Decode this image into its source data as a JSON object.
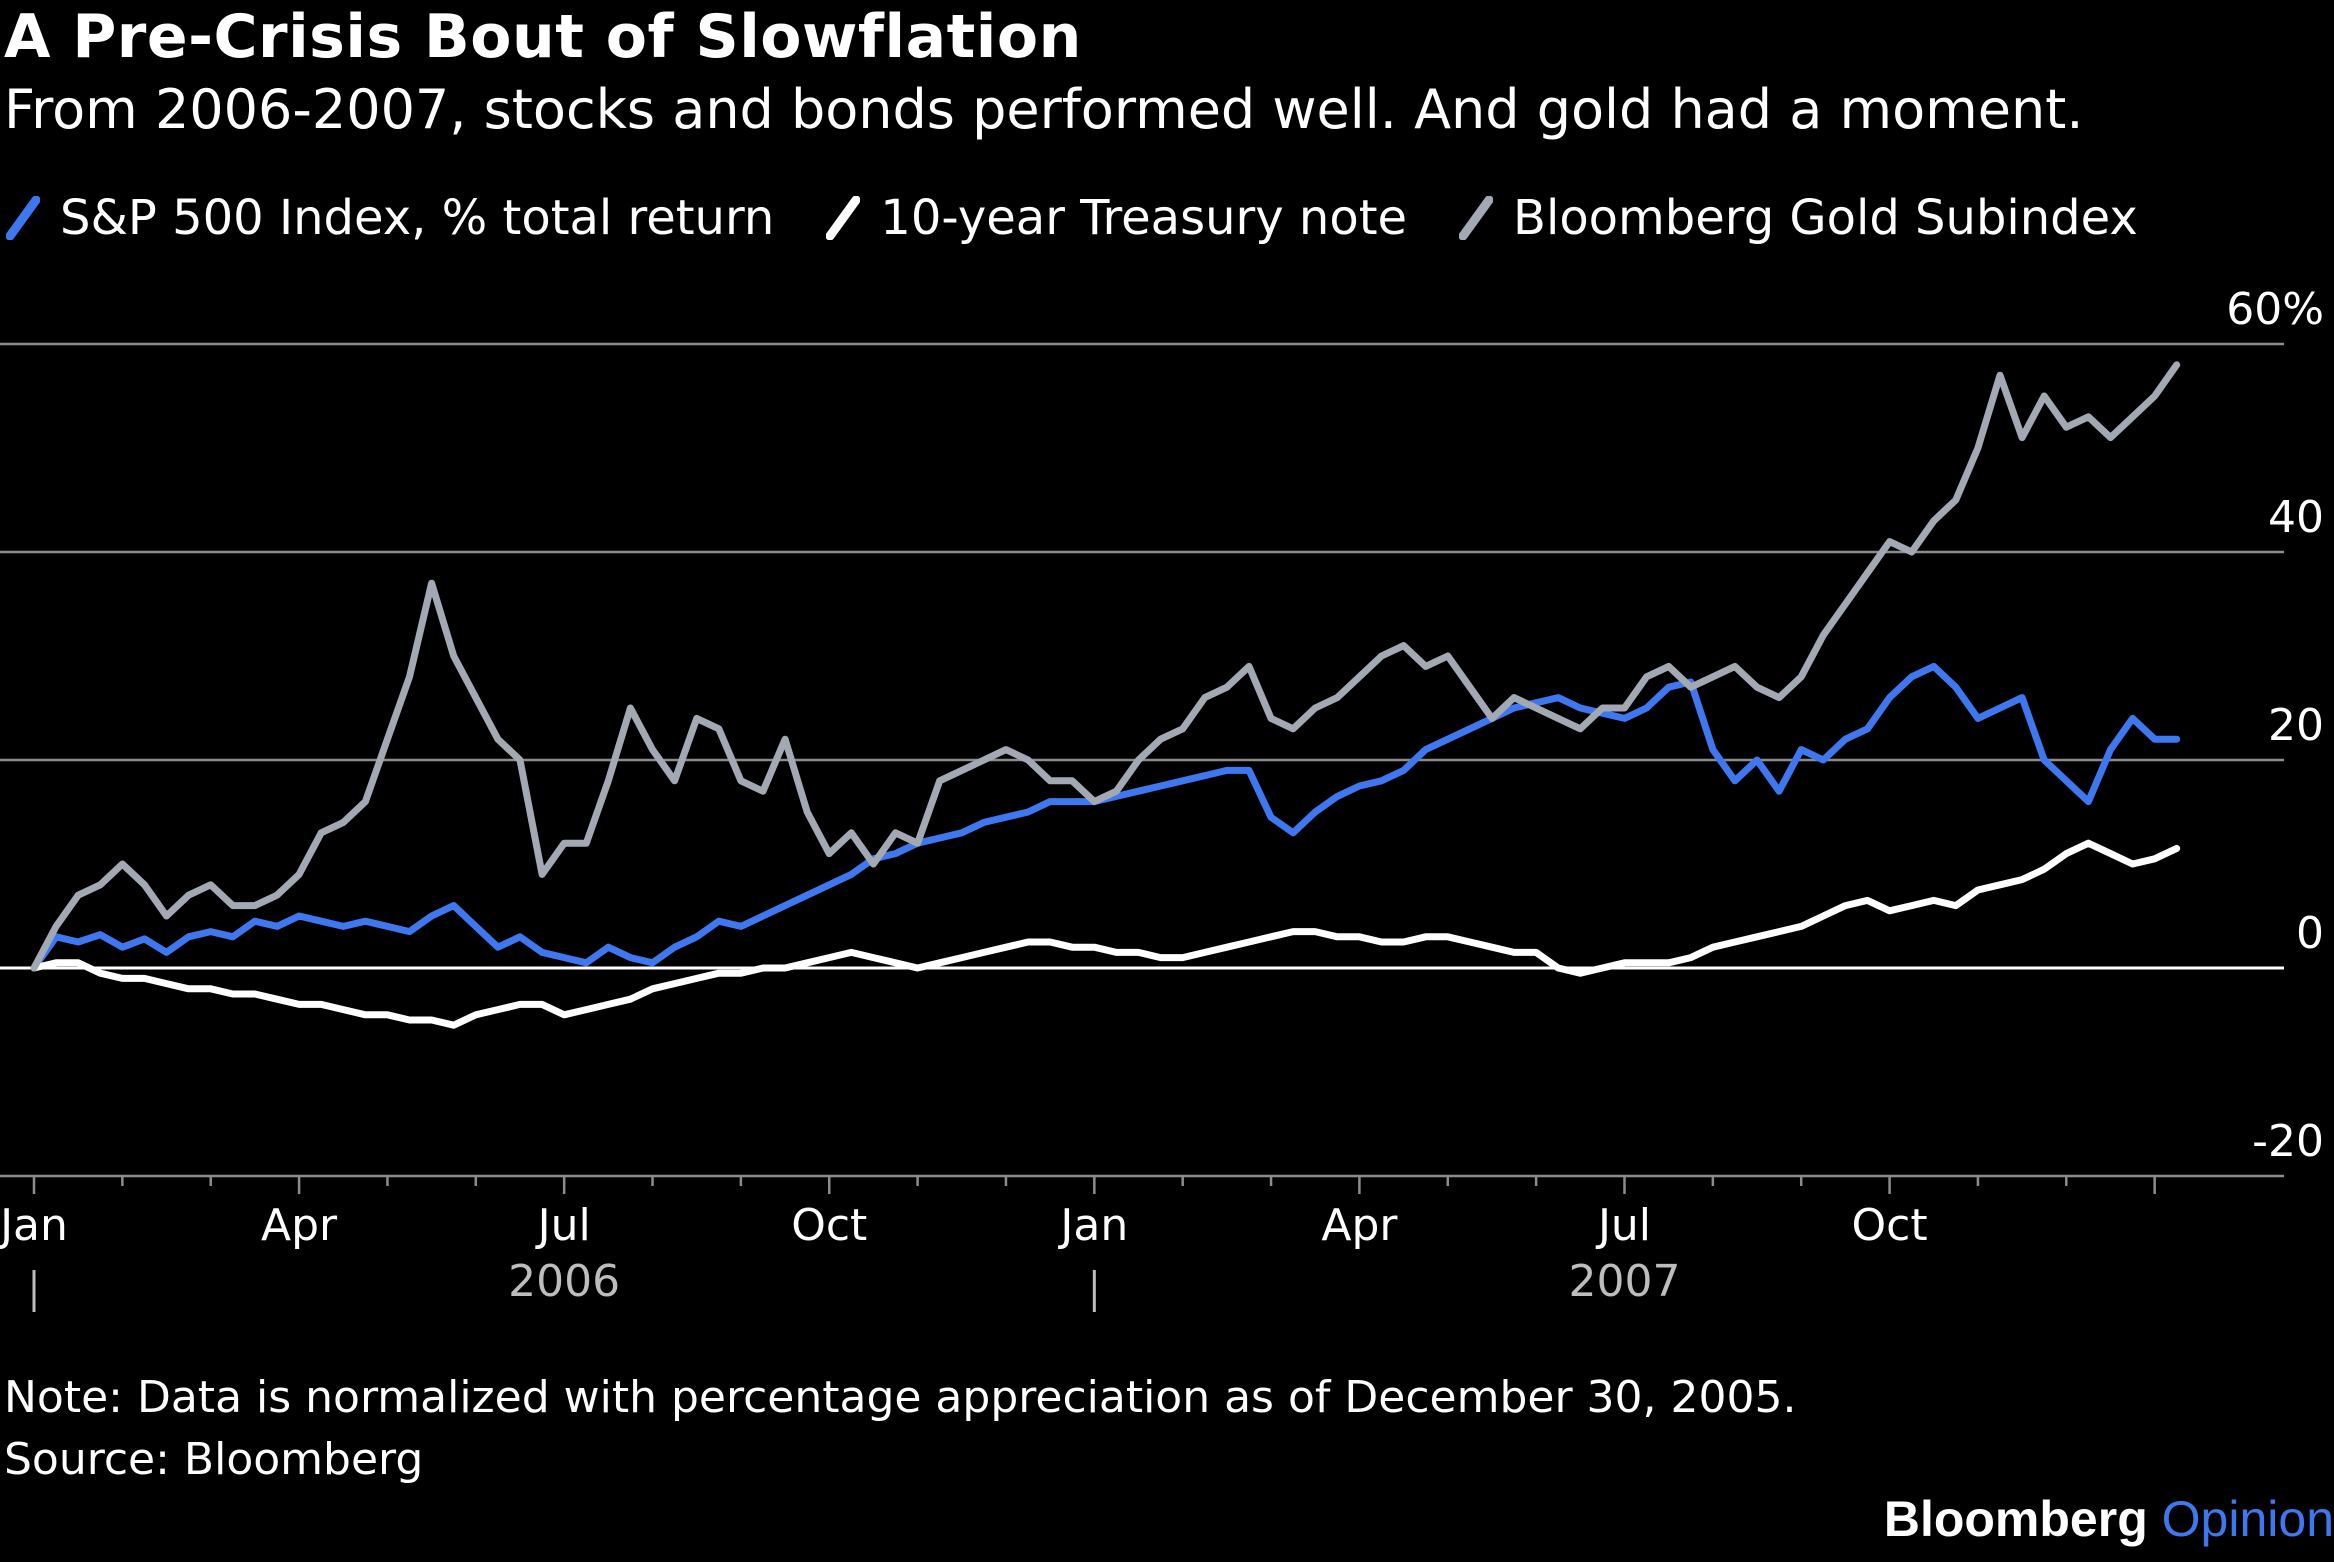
{
  "title": "A Pre-Crisis Bout of Slowflation",
  "subtitle": "From 2006-2007, stocks and bonds performed well. And gold had a moment.",
  "note": "Note: Data is normalized with percentage appreciation as of December 30, 2005.",
  "source": "Source: Bloomberg",
  "brand": {
    "name": "Bloomberg",
    "suffix": "Opinion",
    "suffix_color": "#3e78f0"
  },
  "colors": {
    "background": "#000000",
    "grid": "#8c8c8c",
    "zero_line": "#ffffff",
    "axis_text": "#ffffff",
    "year_text": "#bdbdbd"
  },
  "chart_data": {
    "type": "line",
    "x_unit": "months since Dec 30, 2005",
    "xlim": [
      0,
      24.4
    ],
    "ylim": [
      -20,
      60
    ],
    "y_ticks": [
      {
        "value": 60,
        "label": "60%"
      },
      {
        "value": 40,
        "label": "40"
      },
      {
        "value": 20,
        "label": "20"
      },
      {
        "value": 0,
        "label": "0"
      },
      {
        "value": -20,
        "label": "-20"
      }
    ],
    "x_ticks": [
      {
        "x": 0,
        "label": "Jan"
      },
      {
        "x": 3,
        "label": "Apr"
      },
      {
        "x": 6,
        "label": "Jul"
      },
      {
        "x": 9,
        "label": "Oct"
      },
      {
        "x": 12,
        "label": "Jan"
      },
      {
        "x": 15,
        "label": "Apr"
      },
      {
        "x": 18,
        "label": "Jul"
      },
      {
        "x": 21,
        "label": "Oct"
      }
    ],
    "years": [
      {
        "label": "2006",
        "center_x": 6,
        "start_x": 0
      },
      {
        "label": "2007",
        "center_x": 18,
        "start_x": 12
      }
    ],
    "grid": true,
    "legend_position": "top-left",
    "series": [
      {
        "name": "S&P 500 Index, % total return",
        "color": "#3e78f0",
        "points": [
          [
            0,
            0
          ],
          [
            0.25,
            3
          ],
          [
            0.5,
            2.5
          ],
          [
            0.75,
            3.2
          ],
          [
            1,
            2
          ],
          [
            1.25,
            2.8
          ],
          [
            1.5,
            1.5
          ],
          [
            1.75,
            3
          ],
          [
            2,
            3.5
          ],
          [
            2.25,
            3
          ],
          [
            2.5,
            4.5
          ],
          [
            2.75,
            4
          ],
          [
            3,
            5
          ],
          [
            3.25,
            4.5
          ],
          [
            3.5,
            4
          ],
          [
            3.75,
            4.5
          ],
          [
            4,
            4
          ],
          [
            4.25,
            3.5
          ],
          [
            4.5,
            5
          ],
          [
            4.75,
            6
          ],
          [
            5,
            4
          ],
          [
            5.25,
            2
          ],
          [
            5.5,
            3
          ],
          [
            5.75,
            1.5
          ],
          [
            6,
            1
          ],
          [
            6.25,
            0.5
          ],
          [
            6.5,
            2
          ],
          [
            6.75,
            1
          ],
          [
            7,
            0.5
          ],
          [
            7.25,
            2
          ],
          [
            7.5,
            3
          ],
          [
            7.75,
            4.5
          ],
          [
            8,
            4
          ],
          [
            8.25,
            5
          ],
          [
            8.5,
            6
          ],
          [
            8.75,
            7
          ],
          [
            9,
            8
          ],
          [
            9.25,
            9
          ],
          [
            9.5,
            10.5
          ],
          [
            9.75,
            11
          ],
          [
            10,
            12
          ],
          [
            10.25,
            12.5
          ],
          [
            10.5,
            13
          ],
          [
            10.75,
            14
          ],
          [
            11,
            14.5
          ],
          [
            11.25,
            15
          ],
          [
            11.5,
            16
          ],
          [
            11.75,
            16
          ],
          [
            12,
            16
          ],
          [
            12.25,
            16.5
          ],
          [
            12.5,
            17
          ],
          [
            12.75,
            17.5
          ],
          [
            13,
            18
          ],
          [
            13.25,
            18.5
          ],
          [
            13.5,
            19
          ],
          [
            13.75,
            19
          ],
          [
            14,
            14.5
          ],
          [
            14.25,
            13
          ],
          [
            14.5,
            15
          ],
          [
            14.75,
            16.5
          ],
          [
            15,
            17.5
          ],
          [
            15.25,
            18
          ],
          [
            15.5,
            19
          ],
          [
            15.75,
            21
          ],
          [
            16,
            22
          ],
          [
            16.25,
            23
          ],
          [
            16.5,
            24
          ],
          [
            16.75,
            25
          ],
          [
            17,
            25.5
          ],
          [
            17.25,
            26
          ],
          [
            17.5,
            25
          ],
          [
            17.75,
            24.5
          ],
          [
            18,
            24
          ],
          [
            18.25,
            25
          ],
          [
            18.5,
            27
          ],
          [
            18.75,
            27.5
          ],
          [
            19,
            21
          ],
          [
            19.25,
            18
          ],
          [
            19.5,
            20
          ],
          [
            19.75,
            17
          ],
          [
            20,
            21
          ],
          [
            20.25,
            20
          ],
          [
            20.5,
            22
          ],
          [
            20.75,
            23
          ],
          [
            21,
            26
          ],
          [
            21.25,
            28
          ],
          [
            21.5,
            29
          ],
          [
            21.75,
            27
          ],
          [
            22,
            24
          ],
          [
            22.25,
            25
          ],
          [
            22.5,
            26
          ],
          [
            22.75,
            20
          ],
          [
            23,
            18
          ],
          [
            23.25,
            16
          ],
          [
            23.5,
            21
          ],
          [
            23.75,
            24
          ],
          [
            24,
            22
          ],
          [
            24.25,
            22
          ]
        ]
      },
      {
        "name": "10-year Treasury note",
        "color": "#ffffff",
        "points": [
          [
            0,
            0
          ],
          [
            0.25,
            0.5
          ],
          [
            0.5,
            0.5
          ],
          [
            0.75,
            -0.5
          ],
          [
            1,
            -1
          ],
          [
            1.25,
            -1
          ],
          [
            1.5,
            -1.5
          ],
          [
            1.75,
            -2
          ],
          [
            2,
            -2
          ],
          [
            2.25,
            -2.5
          ],
          [
            2.5,
            -2.5
          ],
          [
            2.75,
            -3
          ],
          [
            3,
            -3.5
          ],
          [
            3.25,
            -3.5
          ],
          [
            3.5,
            -4
          ],
          [
            3.75,
            -4.5
          ],
          [
            4,
            -4.5
          ],
          [
            4.25,
            -5
          ],
          [
            4.5,
            -5
          ],
          [
            4.75,
            -5.5
          ],
          [
            5,
            -4.5
          ],
          [
            5.25,
            -4
          ],
          [
            5.5,
            -3.5
          ],
          [
            5.75,
            -3.5
          ],
          [
            6,
            -4.5
          ],
          [
            6.25,
            -4
          ],
          [
            6.5,
            -3.5
          ],
          [
            6.75,
            -3
          ],
          [
            7,
            -2
          ],
          [
            7.25,
            -1.5
          ],
          [
            7.5,
            -1
          ],
          [
            7.75,
            -0.5
          ],
          [
            8,
            -0.5
          ],
          [
            8.25,
            0
          ],
          [
            8.5,
            0
          ],
          [
            8.75,
            0.5
          ],
          [
            9,
            1
          ],
          [
            9.25,
            1.5
          ],
          [
            9.5,
            1
          ],
          [
            9.75,
            0.5
          ],
          [
            10,
            0
          ],
          [
            10.25,
            0.5
          ],
          [
            10.5,
            1
          ],
          [
            10.75,
            1.5
          ],
          [
            11,
            2
          ],
          [
            11.25,
            2.5
          ],
          [
            11.5,
            2.5
          ],
          [
            11.75,
            2
          ],
          [
            12,
            2
          ],
          [
            12.25,
            1.5
          ],
          [
            12.5,
            1.5
          ],
          [
            12.75,
            1
          ],
          [
            13,
            1
          ],
          [
            13.25,
            1.5
          ],
          [
            13.5,
            2
          ],
          [
            13.75,
            2.5
          ],
          [
            14,
            3
          ],
          [
            14.25,
            3.5
          ],
          [
            14.5,
            3.5
          ],
          [
            14.75,
            3
          ],
          [
            15,
            3
          ],
          [
            15.25,
            2.5
          ],
          [
            15.5,
            2.5
          ],
          [
            15.75,
            3
          ],
          [
            16,
            3
          ],
          [
            16.25,
            2.5
          ],
          [
            16.5,
            2
          ],
          [
            16.75,
            1.5
          ],
          [
            17,
            1.5
          ],
          [
            17.25,
            0
          ],
          [
            17.5,
            -0.5
          ],
          [
            17.75,
            0
          ],
          [
            18,
            0.5
          ],
          [
            18.25,
            0.5
          ],
          [
            18.5,
            0.5
          ],
          [
            18.75,
            1
          ],
          [
            19,
            2
          ],
          [
            19.25,
            2.5
          ],
          [
            19.5,
            3
          ],
          [
            19.75,
            3.5
          ],
          [
            20,
            4
          ],
          [
            20.25,
            5
          ],
          [
            20.5,
            6
          ],
          [
            20.75,
            6.5
          ],
          [
            21,
            5.5
          ],
          [
            21.25,
            6
          ],
          [
            21.5,
            6.5
          ],
          [
            21.75,
            6
          ],
          [
            22,
            7.5
          ],
          [
            22.25,
            8
          ],
          [
            22.5,
            8.5
          ],
          [
            22.75,
            9.5
          ],
          [
            23,
            11
          ],
          [
            23.25,
            12
          ],
          [
            23.5,
            11
          ],
          [
            23.75,
            10
          ],
          [
            24,
            10.5
          ],
          [
            24.25,
            11.5
          ]
        ]
      },
      {
        "name": "Bloomberg Gold Subindex",
        "color": "#a3a9b3",
        "points": [
          [
            0,
            0
          ],
          [
            0.25,
            4
          ],
          [
            0.5,
            7
          ],
          [
            0.75,
            8
          ],
          [
            1,
            10
          ],
          [
            1.25,
            8
          ],
          [
            1.5,
            5
          ],
          [
            1.75,
            7
          ],
          [
            2,
            8
          ],
          [
            2.25,
            6
          ],
          [
            2.5,
            6
          ],
          [
            2.75,
            7
          ],
          [
            3,
            9
          ],
          [
            3.25,
            13
          ],
          [
            3.5,
            14
          ],
          [
            3.75,
            16
          ],
          [
            4,
            22
          ],
          [
            4.25,
            28
          ],
          [
            4.5,
            37
          ],
          [
            4.75,
            30
          ],
          [
            5,
            26
          ],
          [
            5.25,
            22
          ],
          [
            5.5,
            20
          ],
          [
            5.75,
            9
          ],
          [
            6,
            12
          ],
          [
            6.25,
            12
          ],
          [
            6.5,
            18
          ],
          [
            6.75,
            25
          ],
          [
            7,
            21
          ],
          [
            7.25,
            18
          ],
          [
            7.5,
            24
          ],
          [
            7.75,
            23
          ],
          [
            8,
            18
          ],
          [
            8.25,
            17
          ],
          [
            8.5,
            22
          ],
          [
            8.75,
            15
          ],
          [
            9,
            11
          ],
          [
            9.25,
            13
          ],
          [
            9.5,
            10
          ],
          [
            9.75,
            13
          ],
          [
            10,
            12
          ],
          [
            10.25,
            18
          ],
          [
            10.5,
            19
          ],
          [
            10.75,
            20
          ],
          [
            11,
            21
          ],
          [
            11.25,
            20
          ],
          [
            11.5,
            18
          ],
          [
            11.75,
            18
          ],
          [
            12,
            16
          ],
          [
            12.25,
            17
          ],
          [
            12.5,
            20
          ],
          [
            12.75,
            22
          ],
          [
            13,
            23
          ],
          [
            13.25,
            26
          ],
          [
            13.5,
            27
          ],
          [
            13.75,
            29
          ],
          [
            14,
            24
          ],
          [
            14.25,
            23
          ],
          [
            14.5,
            25
          ],
          [
            14.75,
            26
          ],
          [
            15,
            28
          ],
          [
            15.25,
            30
          ],
          [
            15.5,
            31
          ],
          [
            15.75,
            29
          ],
          [
            16,
            30
          ],
          [
            16.25,
            27
          ],
          [
            16.5,
            24
          ],
          [
            16.75,
            26
          ],
          [
            17,
            25
          ],
          [
            17.25,
            24
          ],
          [
            17.5,
            23
          ],
          [
            17.75,
            25
          ],
          [
            18,
            25
          ],
          [
            18.25,
            28
          ],
          [
            18.5,
            29
          ],
          [
            18.75,
            27
          ],
          [
            19,
            28
          ],
          [
            19.25,
            29
          ],
          [
            19.5,
            27
          ],
          [
            19.75,
            26
          ],
          [
            20,
            28
          ],
          [
            20.25,
            32
          ],
          [
            20.5,
            35
          ],
          [
            20.75,
            38
          ],
          [
            21,
            41
          ],
          [
            21.25,
            40
          ],
          [
            21.5,
            43
          ],
          [
            21.75,
            45
          ],
          [
            22,
            50
          ],
          [
            22.25,
            57
          ],
          [
            22.5,
            51
          ],
          [
            22.75,
            55
          ],
          [
            23,
            52
          ],
          [
            23.25,
            53
          ],
          [
            23.5,
            51
          ],
          [
            23.75,
            53
          ],
          [
            24,
            55
          ],
          [
            24.25,
            58
          ]
        ]
      }
    ]
  }
}
